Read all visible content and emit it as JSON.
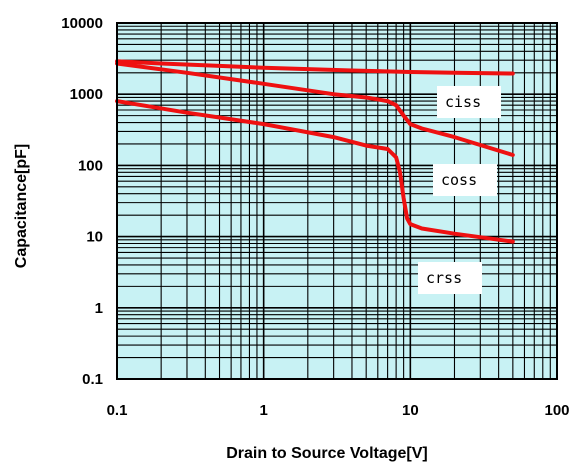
{
  "chart_data": {
    "type": "line",
    "xlabel": "Drain to Source Voltage[V]",
    "ylabel": "Capacitance[pF]",
    "x_scale": "log",
    "y_scale": "log",
    "xlim": [
      0.1,
      100
    ],
    "ylim": [
      0.1,
      10000
    ],
    "x_ticks": [
      "0.1",
      "1",
      "10",
      "100"
    ],
    "y_ticks": [
      "0.1",
      "1",
      "10",
      "100",
      "1000",
      "10000"
    ],
    "grid": true,
    "colors": {
      "plot_background": "#c8f2f4",
      "grid": "#000000",
      "series": "#ee1111"
    },
    "series": [
      {
        "name": "ciss",
        "x": [
          0.1,
          0.2,
          0.5,
          1,
          2,
          4,
          10,
          20,
          50
        ],
        "y": [
          2900,
          2700,
          2500,
          2350,
          2250,
          2150,
          2050,
          2000,
          1950
        ]
      },
      {
        "name": "coss",
        "x": [
          0.1,
          0.3,
          1,
          3,
          5,
          7,
          8,
          9,
          10,
          12,
          20,
          50
        ],
        "y": [
          2700,
          2000,
          1400,
          1000,
          900,
          800,
          700,
          500,
          380,
          330,
          250,
          140
        ]
      },
      {
        "name": "crss",
        "x": [
          0.1,
          0.3,
          1,
          3,
          5,
          7,
          8,
          8.5,
          9,
          9.5,
          10,
          12,
          20,
          50
        ],
        "y": [
          800,
          550,
          380,
          250,
          190,
          170,
          130,
          80,
          35,
          18,
          15,
          13,
          11,
          8.5
        ]
      }
    ],
    "annotations": [
      {
        "text": "ciss",
        "series": "ciss"
      },
      {
        "text": "coss",
        "series": "coss"
      },
      {
        "text": "crss",
        "series": "crss"
      }
    ]
  }
}
